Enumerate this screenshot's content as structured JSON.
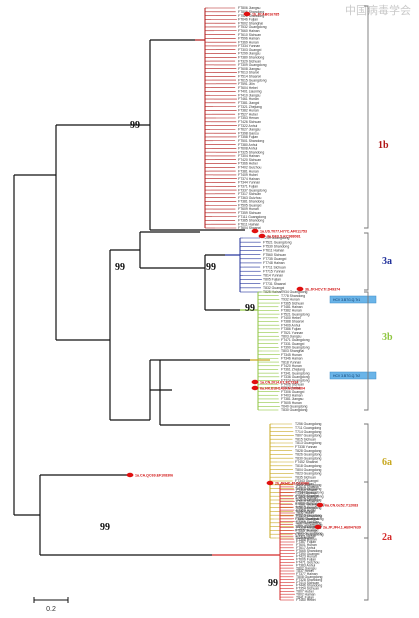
{
  "watermark": "中国病毒学会",
  "scale_bar_label": "0.2",
  "clades": [
    {
      "label": "1b",
      "color": "#b01616"
    },
    {
      "label": "3a",
      "color": "#20309a"
    },
    {
      "label": "3b",
      "color": "#8fc641"
    },
    {
      "label": "6a",
      "color": "#c8a820"
    },
    {
      "label": "2a",
      "color": "#d42a2a"
    }
  ],
  "bootstrap_values": [
    "99",
    "99",
    "99",
    "99",
    "99",
    "99"
  ],
  "reference_strains": [
    "1b.JP.AB016785",
    "1a.US.T077.H77C.AF011753",
    "3a.DE0.S.KC988081",
    "3b.JP.HCV.Tr.D49374",
    "1a.CN.2014.P1.FC7334",
    "6a.HK.EUH1480.NC009804",
    "6a.CN.Gz52.Y12083",
    "1a.CA.QC69.EF108306",
    "2b.JP.HC.J8.D10988",
    "2a.JP.JFH.1.AB047639"
  ],
  "box_labels": [
    "HCV 3.B7G.Q.Tr1",
    "HCV 3.B7G.Q.Tr2"
  ],
  "taxa_1b": [
    "FT806 Jiangsu",
    "FT806 Shandong",
    "FT521 Shandong",
    "FT646 Fujian",
    "FT602 Shanghai",
    "FT532 Guangdong",
    "FT660 Hainan",
    "FT610 Sichuan",
    "FT596 Hainan",
    "FT369 Hunan",
    "FT334 Yunnan",
    "FT303 Guangxi",
    "FT299 Jiangsu",
    "FT380 Shandong",
    "FT329 Sichuan",
    "FT309 Guangdong",
    "FT608 Jiangsu",
    "FT613 Shanxi",
    "FT514 Shaanxi",
    "FT615 Guangdong",
    "FT591 Jilin",
    "FT604 Hebei",
    "FT401 Liaoning",
    "FT410 Jiangsu",
    "FT461 Hunan",
    "FT381 Jiangxi",
    "FT321 Zhejiang",
    "FT382 Hunan",
    "FT527 Hubei",
    "FT353 Henan",
    "FT426 Sichuan",
    "FT322 Anhui",
    "FT627 Jiangsu",
    "FT398 Gansu",
    "FT358 Fujian",
    "FT501 Shandong",
    "FT380 Anhui",
    "FT608 Anhui",
    "FT325 Shandong",
    "FT304 Hainan",
    "FT420 Sichuan",
    "FT366 Hebei",
    "FT402 Guizhou",
    "FT381 Hunan",
    "FT409 Hubei",
    "FT374 Hainan",
    "FT344 Yunnan",
    "FT371 Fujian",
    "FT337 Guangdong",
    "FT317 Sichuan",
    "FT363 Guizhou",
    "FT381 Shandong",
    "FT505 Guangxi",
    "FT609 Hunan",
    "FT359 Sichuan",
    "FT111 Guangdong",
    "FT385 Shandong",
    "FT611 Hainan",
    "FT604 Shaanxi"
  ],
  "taxa_3a": [
    "T259 Guangdong",
    "FT521 Guangdong",
    "FT530 Shandong",
    "FT611 Hainan",
    "FT560 Sichuan",
    "FT735 Guangxi",
    "FT748 Hainan",
    "FT711 Sichuan",
    "FT715 Yunnan",
    "T814 Yunnan",
    "T805 Fujian",
    "FT731 Shaanxi",
    "T832 Guangxi",
    "T825 Hainan"
  ],
  "taxa_3b": [
    "T934 Guangdong",
    "T778 Shandong",
    "T932 Hunan",
    "FT365 Sichuan",
    "FT481 Hainan",
    "FT382 Hunan",
    "FT521 Guangdong",
    "FT400 Hebei",
    "FT388 Shaanxi",
    "FT409 Anhui",
    "FT386 Fujian",
    "FT521 Yunnan",
    "T803 Jiangsu",
    "FT471 Guangdong",
    "FT331 Guangxi",
    "FT390 Guangdong",
    "T803 Shanghai",
    "FT345 Hunan",
    "FT346 Hainan",
    "T818 Yunnan",
    "FT420 Hunan",
    "FT361 Zhejiang",
    "FT341 Guangdong",
    "FT336 Guangdong",
    "FT324 Guangdong",
    "FT406 Sichuan",
    "FT367 Anhui",
    "FT306 Guangxi",
    "FT403 Hainan",
    "FT381 Jiangsu",
    "FT605 Hunan",
    "T640 Guangdong",
    "T830 Guangdong"
  ],
  "taxa_6a": [
    "T256 Guangdong",
    "T711 Guangdong",
    "T714 Guangdong",
    "T807 Guangdong",
    "T815 Sichuan",
    "T813 Guangdong",
    "FT338 Yunnan",
    "T828 Guangdong",
    "T826 Guangdong",
    "T830 Guangdong",
    "FT452 Shaanxi",
    "T818 Guangdong",
    "T804 Guangdong",
    "T823 Guangdong",
    "T835 Sichuan",
    "FT343 Guangxi",
    "T823 Guangdong",
    "T816 Guangdong",
    "FT344 Guangdong",
    "FT380 Guangdong",
    "T821 Guangdong",
    "FT310 Sichuan",
    "T830 Guangdong",
    "T808 Yunnan",
    "T822 Guangdong",
    "FT390 Guangdong",
    "T837 Guangdong",
    "T823 Guangdong",
    "FT216 Guangxi",
    "FT212 Guangdong",
    "T819 Hunan"
  ],
  "taxa_2a": [
    "T402 Hebei",
    "FT615 Shaanxi",
    "FT355 Shanxi",
    "T711 Sichuan",
    "FT378 Shaanxi",
    "FT626 Hainan",
    "FT620 Shaanxi",
    "FT382 Guangdong",
    "FT610 Hunan",
    "FT358 Hubei",
    "T832 Hubei",
    "FT500 Shandong",
    "T806 Shanghai",
    "FT385 Sichuan",
    "T807 Guangdong",
    "FT338 Hainan",
    "FT327 Hunan",
    "T830 Guangdong",
    "FT311 Hebei",
    "FT388 Hunan",
    "FT367 Fujian",
    "FT601 Hunan",
    "FT617 Anhui",
    "FT665 Shandong",
    "FT390 Guangxi",
    "FT423 Hunan",
    "FT606 Fujian",
    "FT471 Guizhou",
    "FT383 Anhui",
    "T802 Jiangsu",
    "T837 Hebei",
    "FT377 Hainan",
    "T808 Guangdong",
    "FT328 Shandong",
    "FT414 Sichuan",
    "FT446 Shandong",
    "FT354 Sichuan",
    "T807 Hubei",
    "T802 Hainan",
    "T841 Fujian",
    "FT460 Hebei"
  ]
}
